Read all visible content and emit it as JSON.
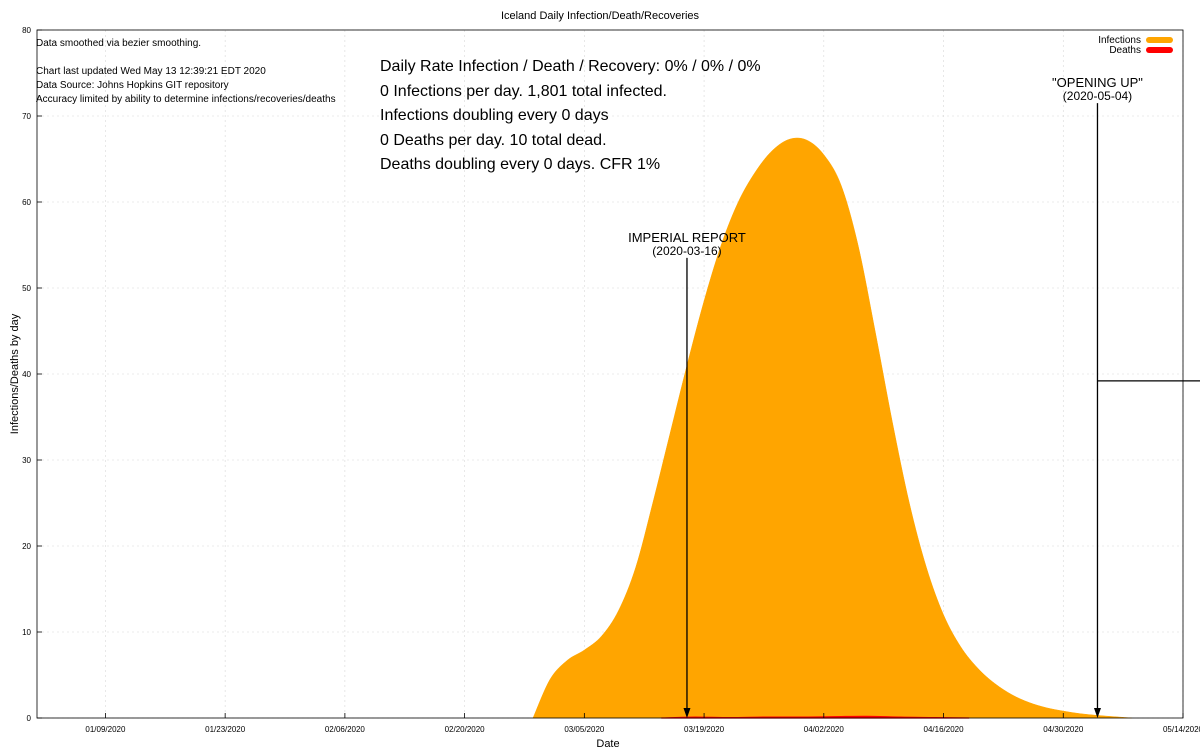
{
  "chart_data": {
    "type": "area",
    "title": "Iceland Daily Infection/Death/Recoveries",
    "xlabel": "Date",
    "ylabel": "Infections/Deaths by day",
    "ylim": [
      0,
      80
    ],
    "yticks": [
      "0",
      "10",
      "20",
      "30",
      "40",
      "50",
      "60",
      "70",
      "80"
    ],
    "xlim": [
      "2020-01-01",
      "2020-05-14"
    ],
    "xticks": [
      {
        "date": "2020-01-09",
        "label": "01/09/2020"
      },
      {
        "date": "2020-01-23",
        "label": "01/23/2020"
      },
      {
        "date": "2020-02-06",
        "label": "02/06/2020"
      },
      {
        "date": "2020-02-20",
        "label": "02/20/2020"
      },
      {
        "date": "2020-03-05",
        "label": "03/05/2020"
      },
      {
        "date": "2020-03-19",
        "label": "03/19/2020"
      },
      {
        "date": "2020-04-02",
        "label": "04/02/2020"
      },
      {
        "date": "2020-04-16",
        "label": "04/16/2020"
      },
      {
        "date": "2020-04-30",
        "label": "04/30/2020"
      },
      {
        "date": "2020-05-14",
        "label": "05/14/2020"
      }
    ],
    "grid": true,
    "legend": "top-right",
    "series": [
      {
        "name": "Infections",
        "color": "#FFA500",
        "points": [
          [
            "2020-02-28",
            0
          ],
          [
            "2020-03-01",
            4.5
          ],
          [
            "2020-03-03",
            6.7
          ],
          [
            "2020-03-05",
            7.9
          ],
          [
            "2020-03-07",
            9.5
          ],
          [
            "2020-03-09",
            12.5
          ],
          [
            "2020-03-11",
            17.5
          ],
          [
            "2020-03-13",
            25
          ],
          [
            "2020-03-15",
            33
          ],
          [
            "2020-03-17",
            41
          ],
          [
            "2020-03-19",
            48.5
          ],
          [
            "2020-03-21",
            55
          ],
          [
            "2020-03-23",
            60
          ],
          [
            "2020-03-25",
            63.5
          ],
          [
            "2020-03-27",
            66
          ],
          [
            "2020-03-29",
            67.3
          ],
          [
            "2020-03-31",
            67.2
          ],
          [
            "2020-04-02",
            65.5
          ],
          [
            "2020-04-04",
            62
          ],
          [
            "2020-04-06",
            55
          ],
          [
            "2020-04-08",
            45
          ],
          [
            "2020-04-10",
            34.5
          ],
          [
            "2020-04-12",
            25
          ],
          [
            "2020-04-14",
            17.5
          ],
          [
            "2020-04-16",
            12
          ],
          [
            "2020-04-18",
            8.3
          ],
          [
            "2020-04-20",
            5.8
          ],
          [
            "2020-04-22",
            4
          ],
          [
            "2020-04-24",
            2.7
          ],
          [
            "2020-04-26",
            1.8
          ],
          [
            "2020-04-28",
            1.2
          ],
          [
            "2020-04-30",
            0.8
          ],
          [
            "2020-05-02",
            0.5
          ],
          [
            "2020-05-04",
            0.3
          ],
          [
            "2020-05-06",
            0.15
          ],
          [
            "2020-05-08",
            0
          ]
        ]
      },
      {
        "name": "Deaths",
        "color": "#FF0000",
        "points": [
          [
            "2020-03-14",
            0
          ],
          [
            "2020-03-18",
            0.1
          ],
          [
            "2020-03-22",
            0.05
          ],
          [
            "2020-03-26",
            0.1
          ],
          [
            "2020-03-30",
            0.1
          ],
          [
            "2020-04-03",
            0.15
          ],
          [
            "2020-04-07",
            0.2
          ],
          [
            "2020-04-11",
            0.1
          ],
          [
            "2020-04-15",
            0.05
          ],
          [
            "2020-04-19",
            0
          ]
        ]
      }
    ],
    "annotations": [
      {
        "id": "imperial",
        "line1": "IMPERIAL REPORT",
        "line2": "(2020-03-16)",
        "date": "2020-03-17",
        "y_top": 53.5
      },
      {
        "id": "opening",
        "line1": "\"OPENING UP\"",
        "line2": "(2020-05-04)",
        "date": "2020-05-04",
        "y_top": 71.5
      }
    ],
    "hline": {
      "date_from": "2020-05-04",
      "y": 39.2
    }
  },
  "notes": [
    "Data smoothed via bezier smoothing.",
    "Chart last updated Wed May 13 12:39:21 EDT 2020",
    "Data Source: Johns Hopkins GIT repository",
    "Accuracy limited by ability to determine infections/recoveries/deaths"
  ],
  "stats": [
    "Daily Rate Infection / Death / Recovery: 0% / 0% / 0%",
    "0 Infections per day.  1,801 total infected.",
    "Infections doubling every 0 days",
    "0 Deaths per day.  10 total dead.",
    "Deaths doubling every 0 days.  CFR 1%"
  ]
}
